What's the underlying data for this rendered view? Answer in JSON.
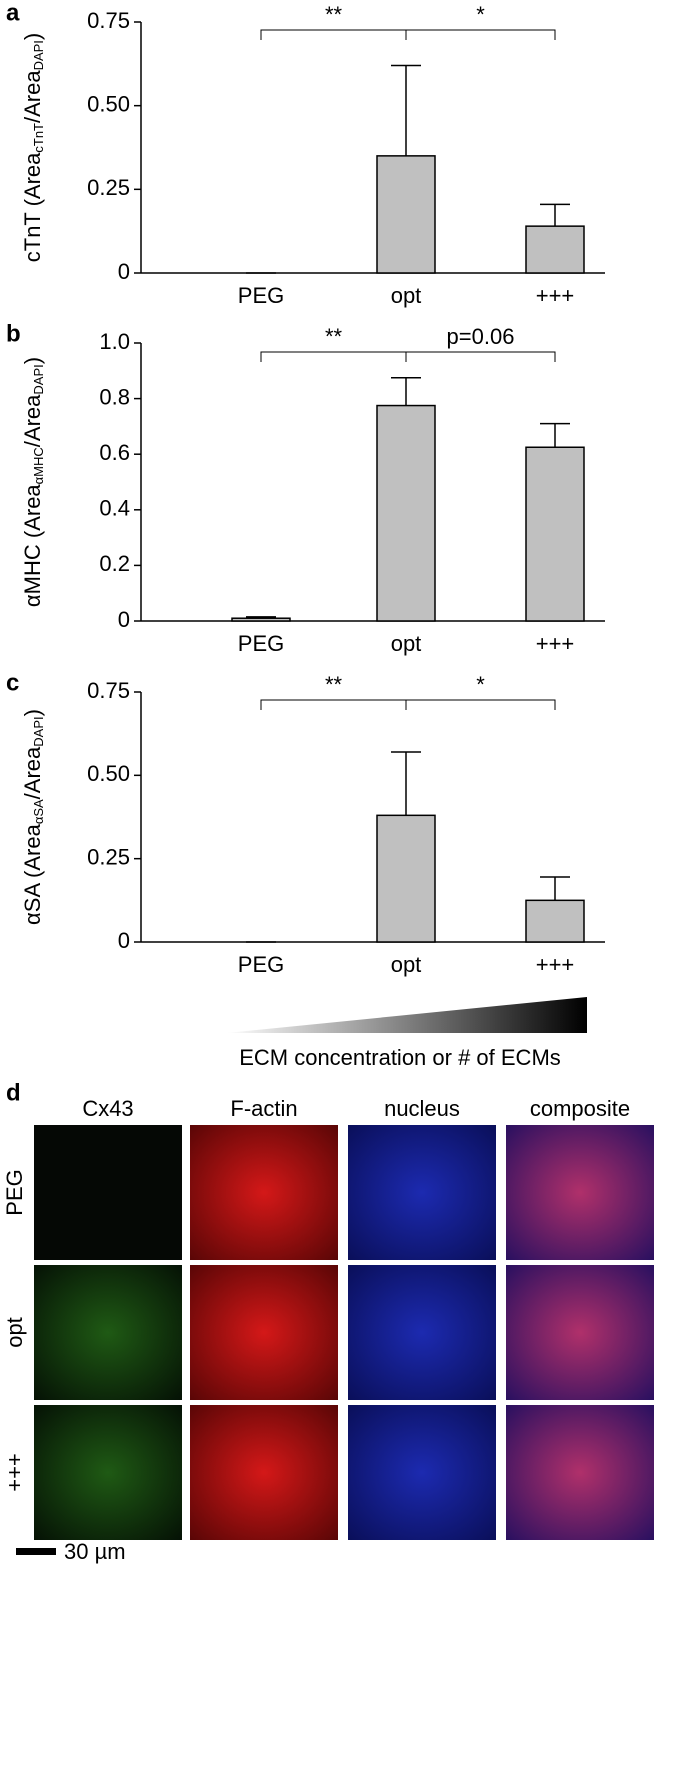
{
  "chart_data": [
    {
      "type": "bar",
      "panel": "a",
      "ylabel": [
        "cTnT (Area",
        "cTnT",
        "/Area",
        "DAPI",
        ")"
      ],
      "categories": [
        "PEG",
        "opt",
        "+++"
      ],
      "values": [
        0,
        0.35,
        0.14
      ],
      "errors": [
        0,
        0.27,
        0.065
      ],
      "color": "#c0c0c0",
      "ylim": [
        0,
        0.75
      ],
      "yticks": [
        0,
        {
          "value": 0.25,
          "label": "0.25"
        },
        {
          "value": 0.5,
          "label": "0.50"
        },
        {
          "value": 0.75,
          "label": "0.75"
        }
      ],
      "annotations": [
        "**",
        "*"
      ]
    },
    {
      "type": "bar",
      "panel": "b",
      "ylabel": [
        "αMHC (Area",
        "αMHC",
        "/Area",
        "DAPI",
        ")"
      ],
      "categories": [
        "PEG",
        "opt",
        "+++"
      ],
      "values": [
        0.01,
        0.775,
        0.625
      ],
      "errors": [
        0.005,
        0.1,
        0.085
      ],
      "color": "#c0c0c0",
      "ylim": [
        0,
        1
      ],
      "yticks": [
        0,
        0.2,
        0.4,
        0.6,
        0.8,
        {
          "value": 1,
          "label": "1.0"
        }
      ],
      "annotations": [
        "**",
        "p=0.06"
      ]
    },
    {
      "type": "bar",
      "panel": "c",
      "ylabel": [
        "αSA (Area",
        "αSA",
        "/Area",
        "DAPI",
        ")"
      ],
      "categories": [
        "PEG",
        "opt",
        "+++"
      ],
      "values": [
        0,
        0.38,
        0.125
      ],
      "errors": [
        0,
        0.19,
        0.07
      ],
      "color": "#c0c0c0",
      "ylim": [
        0,
        0.75
      ],
      "yticks": [
        0,
        {
          "value": 0.25,
          "label": "0.25"
        },
        {
          "value": 0.5,
          "label": "0.50"
        },
        {
          "value": 0.75,
          "label": "0.75"
        }
      ],
      "annotations": [
        "**",
        "*"
      ]
    }
  ],
  "gradient_label": "ECM concentration or # of ECMs",
  "panel_d": {
    "label": "d",
    "columns": [
      "Cx43",
      "F-actin",
      "nucleus",
      "composite"
    ],
    "rows": [
      "PEG",
      "opt",
      "+++"
    ],
    "scale_bar": "30 µm"
  }
}
